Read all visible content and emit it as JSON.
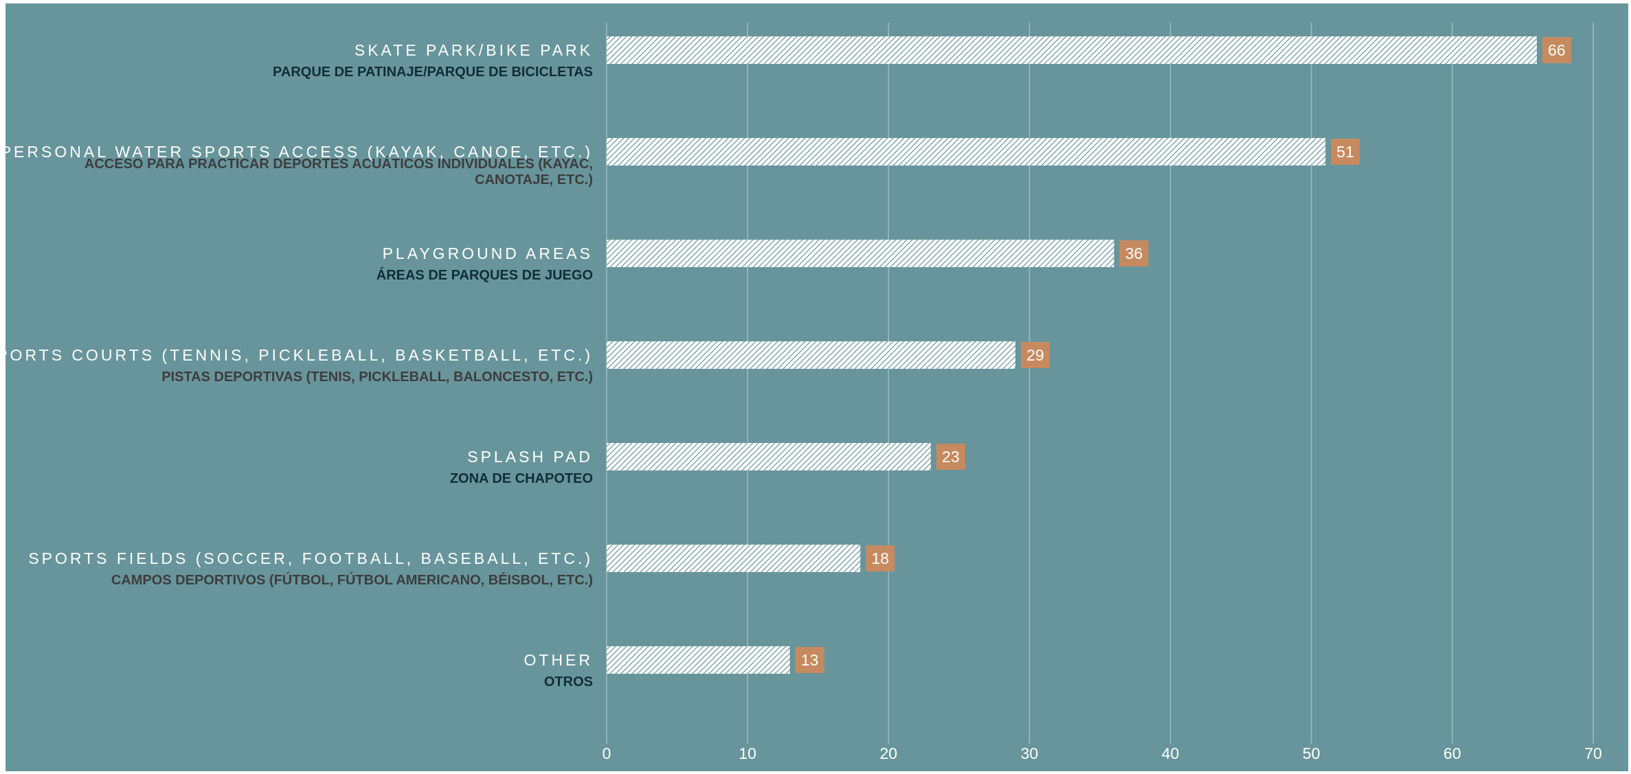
{
  "chart_data": {
    "type": "bar",
    "orientation": "horizontal",
    "categories": [
      {
        "label": "SKATE PARK/BIKE PARK",
        "sublabel": [
          "PARQUE DE PATINAJE/PARQUE DE BICICLETAS"
        ],
        "value": 66
      },
      {
        "label": "PERSONAL WATER SPORTS ACCESS (KAYAK, CANOE, ETC.)",
        "sublabel": [
          "ACCESO PARA PRACTICAR DEPORTES ACUÁTICOS INDIVIDUALES (KAYAC,",
          "CANOTAJE, ETC.)"
        ],
        "value": 51
      },
      {
        "label": "PLAYGROUND AREAS",
        "sublabel": [
          "ÁREAS DE PARQUES DE JUEGO"
        ],
        "value": 36
      },
      {
        "label": "SPORTS COURTS (TENNIS, PICKLEBALL, BASKETBALL, ETC.)",
        "sublabel": [
          "PISTAS DEPORTIVAS (TENIS, PICKLEBALL, BALONCESTO, ETC.)"
        ],
        "value": 29
      },
      {
        "label": "SPLASH PAD",
        "sublabel": [
          "ZONA DE CHAPOTEO"
        ],
        "value": 23
      },
      {
        "label": "SPORTS FIELDS (SOCCER, FOOTBALL, BASEBALL, ETC.)",
        "sublabel": [
          "CAMPOS DEPORTIVOS (FÚTBOL, FÚTBOL AMERICANO, BÉISBOL, ETC.)"
        ],
        "value": 18
      },
      {
        "label": "OTHER",
        "sublabel": [
          "OTROS"
        ],
        "value": 13
      }
    ],
    "xlim": [
      0,
      70
    ],
    "xticks": [
      0,
      10,
      20,
      30,
      40,
      50,
      60,
      70
    ],
    "grid": "vertical",
    "legend": "none",
    "data_labels": true
  },
  "colors": {
    "background": "#68959c",
    "bar_fill": "#ffffff",
    "bar_hatch": "#68959c",
    "value_box": "#c78a5e",
    "gridline": "#9dbcc1",
    "sublabel_dark": "#0f2d3a",
    "sublabel_gray": "#3d3d3d"
  }
}
